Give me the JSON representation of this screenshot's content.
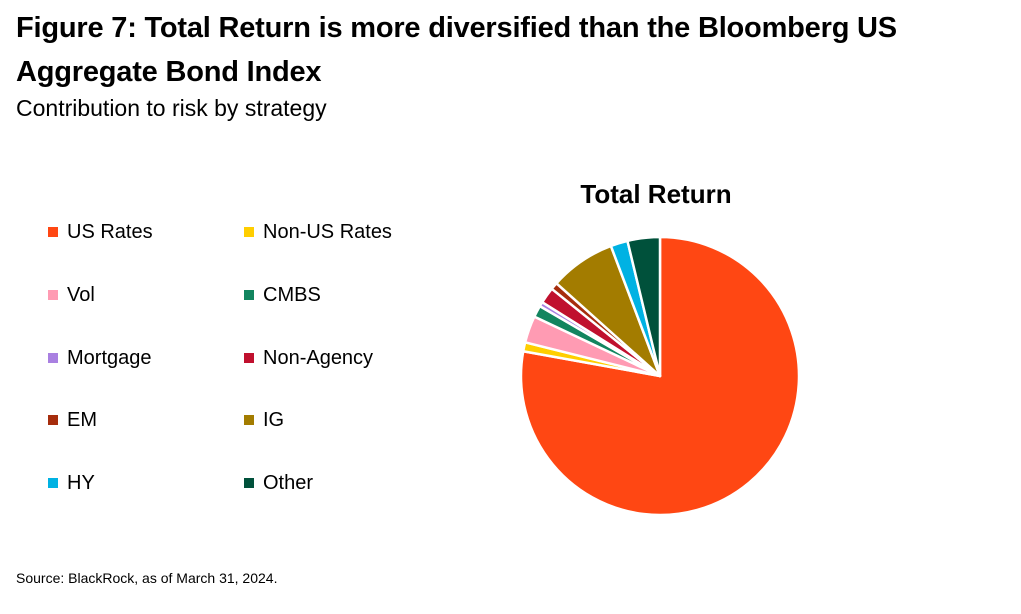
{
  "header": {
    "title": "Figure 7: Total Return is more diversified than the Bloomberg US Aggregate Bond Index",
    "subtitle": "Contribution to risk by strategy"
  },
  "footer": {
    "source": "Source: BlackRock, as of March 31, 2024."
  },
  "chart_data": {
    "type": "pie",
    "title": "Total Return",
    "legend_position": "left",
    "start_angle_deg": 0,
    "direction": "clockwise",
    "slices": [
      {
        "label": "US Rates",
        "value": 74.5,
        "color": "#FF4713"
      },
      {
        "label": "Non-US Rates",
        "value": 1.0,
        "color": "#FFCE00"
      },
      {
        "label": "Vol",
        "value": 3.0,
        "color": "#FF9BB3"
      },
      {
        "label": "CMBS",
        "value": 1.3,
        "color": "#12855F"
      },
      {
        "label": "Mortgage",
        "value": 0.5,
        "color": "#A980E1"
      },
      {
        "label": "Non-Agency",
        "value": 1.8,
        "color": "#C0102E"
      },
      {
        "label": "EM",
        "value": 0.8,
        "color": "#A62D0D"
      },
      {
        "label": "IG",
        "value": 7.3,
        "color": "#A37C00"
      },
      {
        "label": "HY",
        "value": 1.9,
        "color": "#00B2E3"
      },
      {
        "label": "Other",
        "value": 3.6,
        "color": "#00513B"
      }
    ]
  }
}
